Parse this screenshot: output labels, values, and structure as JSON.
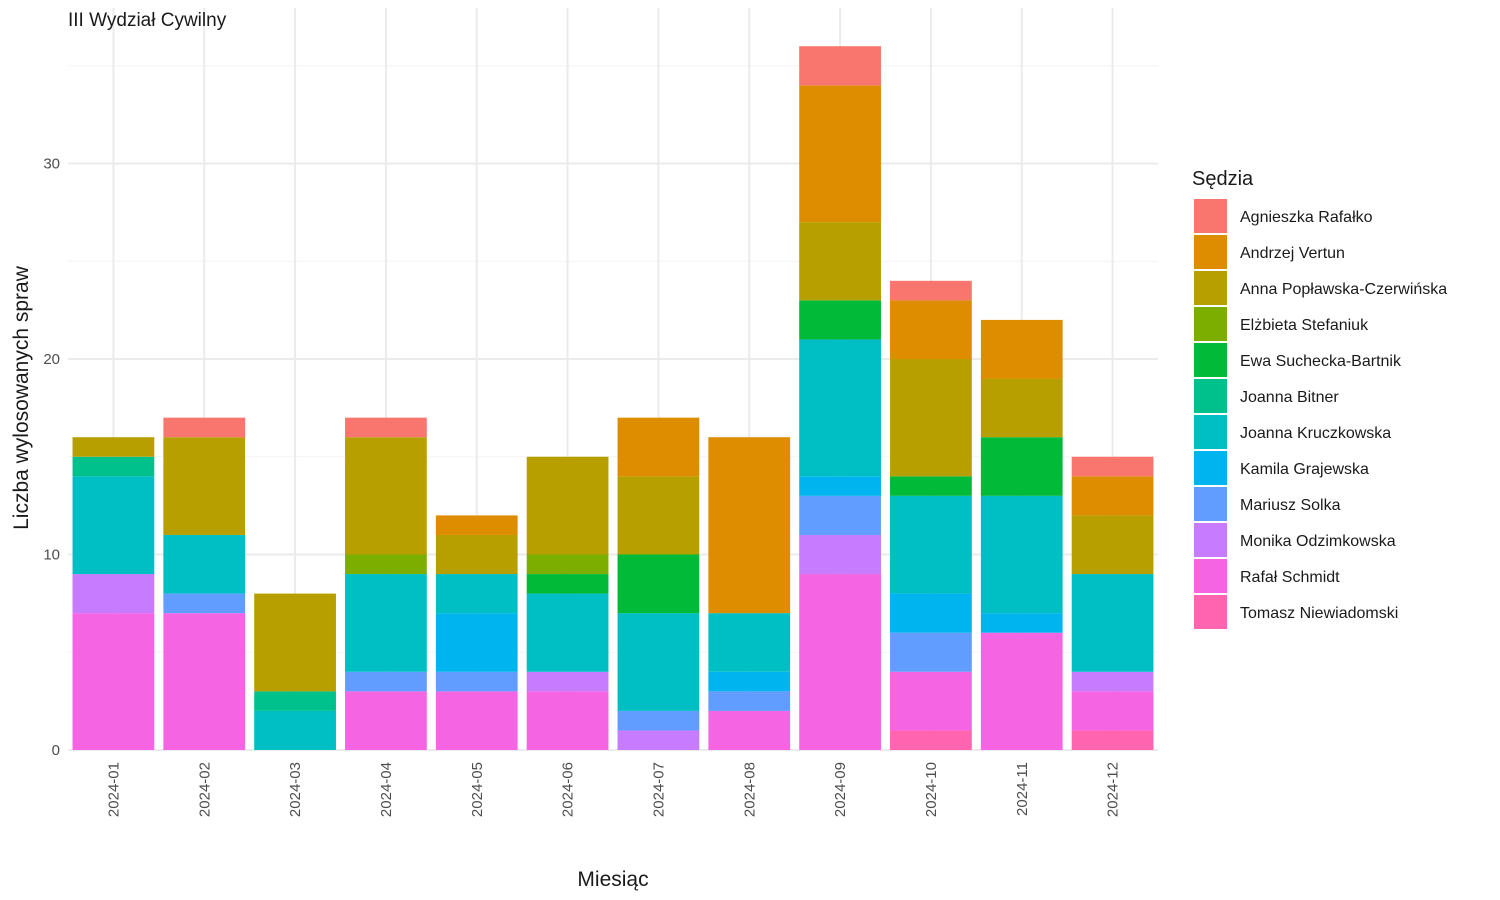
{
  "chart_data": {
    "type": "bar",
    "stacked": true,
    "title": "III Wydział Cywilny",
    "xlabel": "Miesiąc",
    "ylabel": "Liczba wylosowanych spraw",
    "ylim": [
      0,
      37
    ],
    "yticks": [
      0,
      10,
      20,
      30
    ],
    "grid": true,
    "legend_title": "Sędzia",
    "legend_position": "right",
    "categories": [
      "2024-01",
      "2024-02",
      "2024-03",
      "2024-04",
      "2024-05",
      "2024-06",
      "2024-07",
      "2024-08",
      "2024-09",
      "2024-10",
      "2024-11",
      "2024-12"
    ],
    "series": [
      {
        "name": "Agnieszka Rafałko",
        "color": "#F8766D",
        "values": [
          0,
          1,
          0,
          1,
          0,
          0,
          0,
          0,
          2,
          1,
          0,
          1
        ]
      },
      {
        "name": "Andrzej Vertun",
        "color": "#DE8C00",
        "values": [
          0,
          0,
          0,
          0,
          1,
          0,
          3,
          9,
          7,
          3,
          3,
          2
        ]
      },
      {
        "name": "Anna Popławska-Czerwińska",
        "color": "#B79F00",
        "values": [
          1,
          5,
          5,
          6,
          2,
          5,
          4,
          0,
          4,
          6,
          3,
          3
        ]
      },
      {
        "name": "Elżbieta Stefaniuk",
        "color": "#7CAE00",
        "values": [
          0,
          0,
          0,
          1,
          0,
          1,
          0,
          0,
          0,
          0,
          0,
          0
        ]
      },
      {
        "name": "Ewa Suchecka-Bartnik",
        "color": "#00BA38",
        "values": [
          0,
          0,
          0,
          0,
          0,
          1,
          3,
          0,
          2,
          1,
          3,
          0
        ]
      },
      {
        "name": "Joanna Bitner",
        "color": "#00C08B",
        "values": [
          1,
          0,
          1,
          0,
          0,
          0,
          0,
          0,
          0,
          0,
          0,
          0
        ]
      },
      {
        "name": "Joanna Kruczkowska",
        "color": "#00BFC4",
        "values": [
          5,
          3,
          2,
          5,
          2,
          4,
          5,
          3,
          7,
          5,
          6,
          5
        ]
      },
      {
        "name": "Kamila Grajewska",
        "color": "#00B4F0",
        "values": [
          0,
          0,
          0,
          0,
          3,
          0,
          0,
          1,
          1,
          2,
          1,
          0
        ]
      },
      {
        "name": "Mariusz Solka",
        "color": "#619CFF",
        "values": [
          0,
          1,
          0,
          1,
          1,
          0,
          1,
          1,
          2,
          2,
          0,
          0
        ]
      },
      {
        "name": "Monika Odzimkowska",
        "color": "#C77CFF",
        "values": [
          2,
          0,
          0,
          0,
          0,
          1,
          1,
          0,
          2,
          0,
          0,
          1
        ]
      },
      {
        "name": "Rafał Schmidt",
        "color": "#F564E3",
        "values": [
          7,
          7,
          0,
          3,
          3,
          3,
          0,
          2,
          9,
          3,
          6,
          2
        ]
      },
      {
        "name": "Tomasz Niewiadomski",
        "color": "#FF64B0",
        "values": [
          0,
          0,
          0,
          0,
          0,
          0,
          0,
          0,
          0,
          1,
          0,
          1
        ]
      }
    ]
  }
}
